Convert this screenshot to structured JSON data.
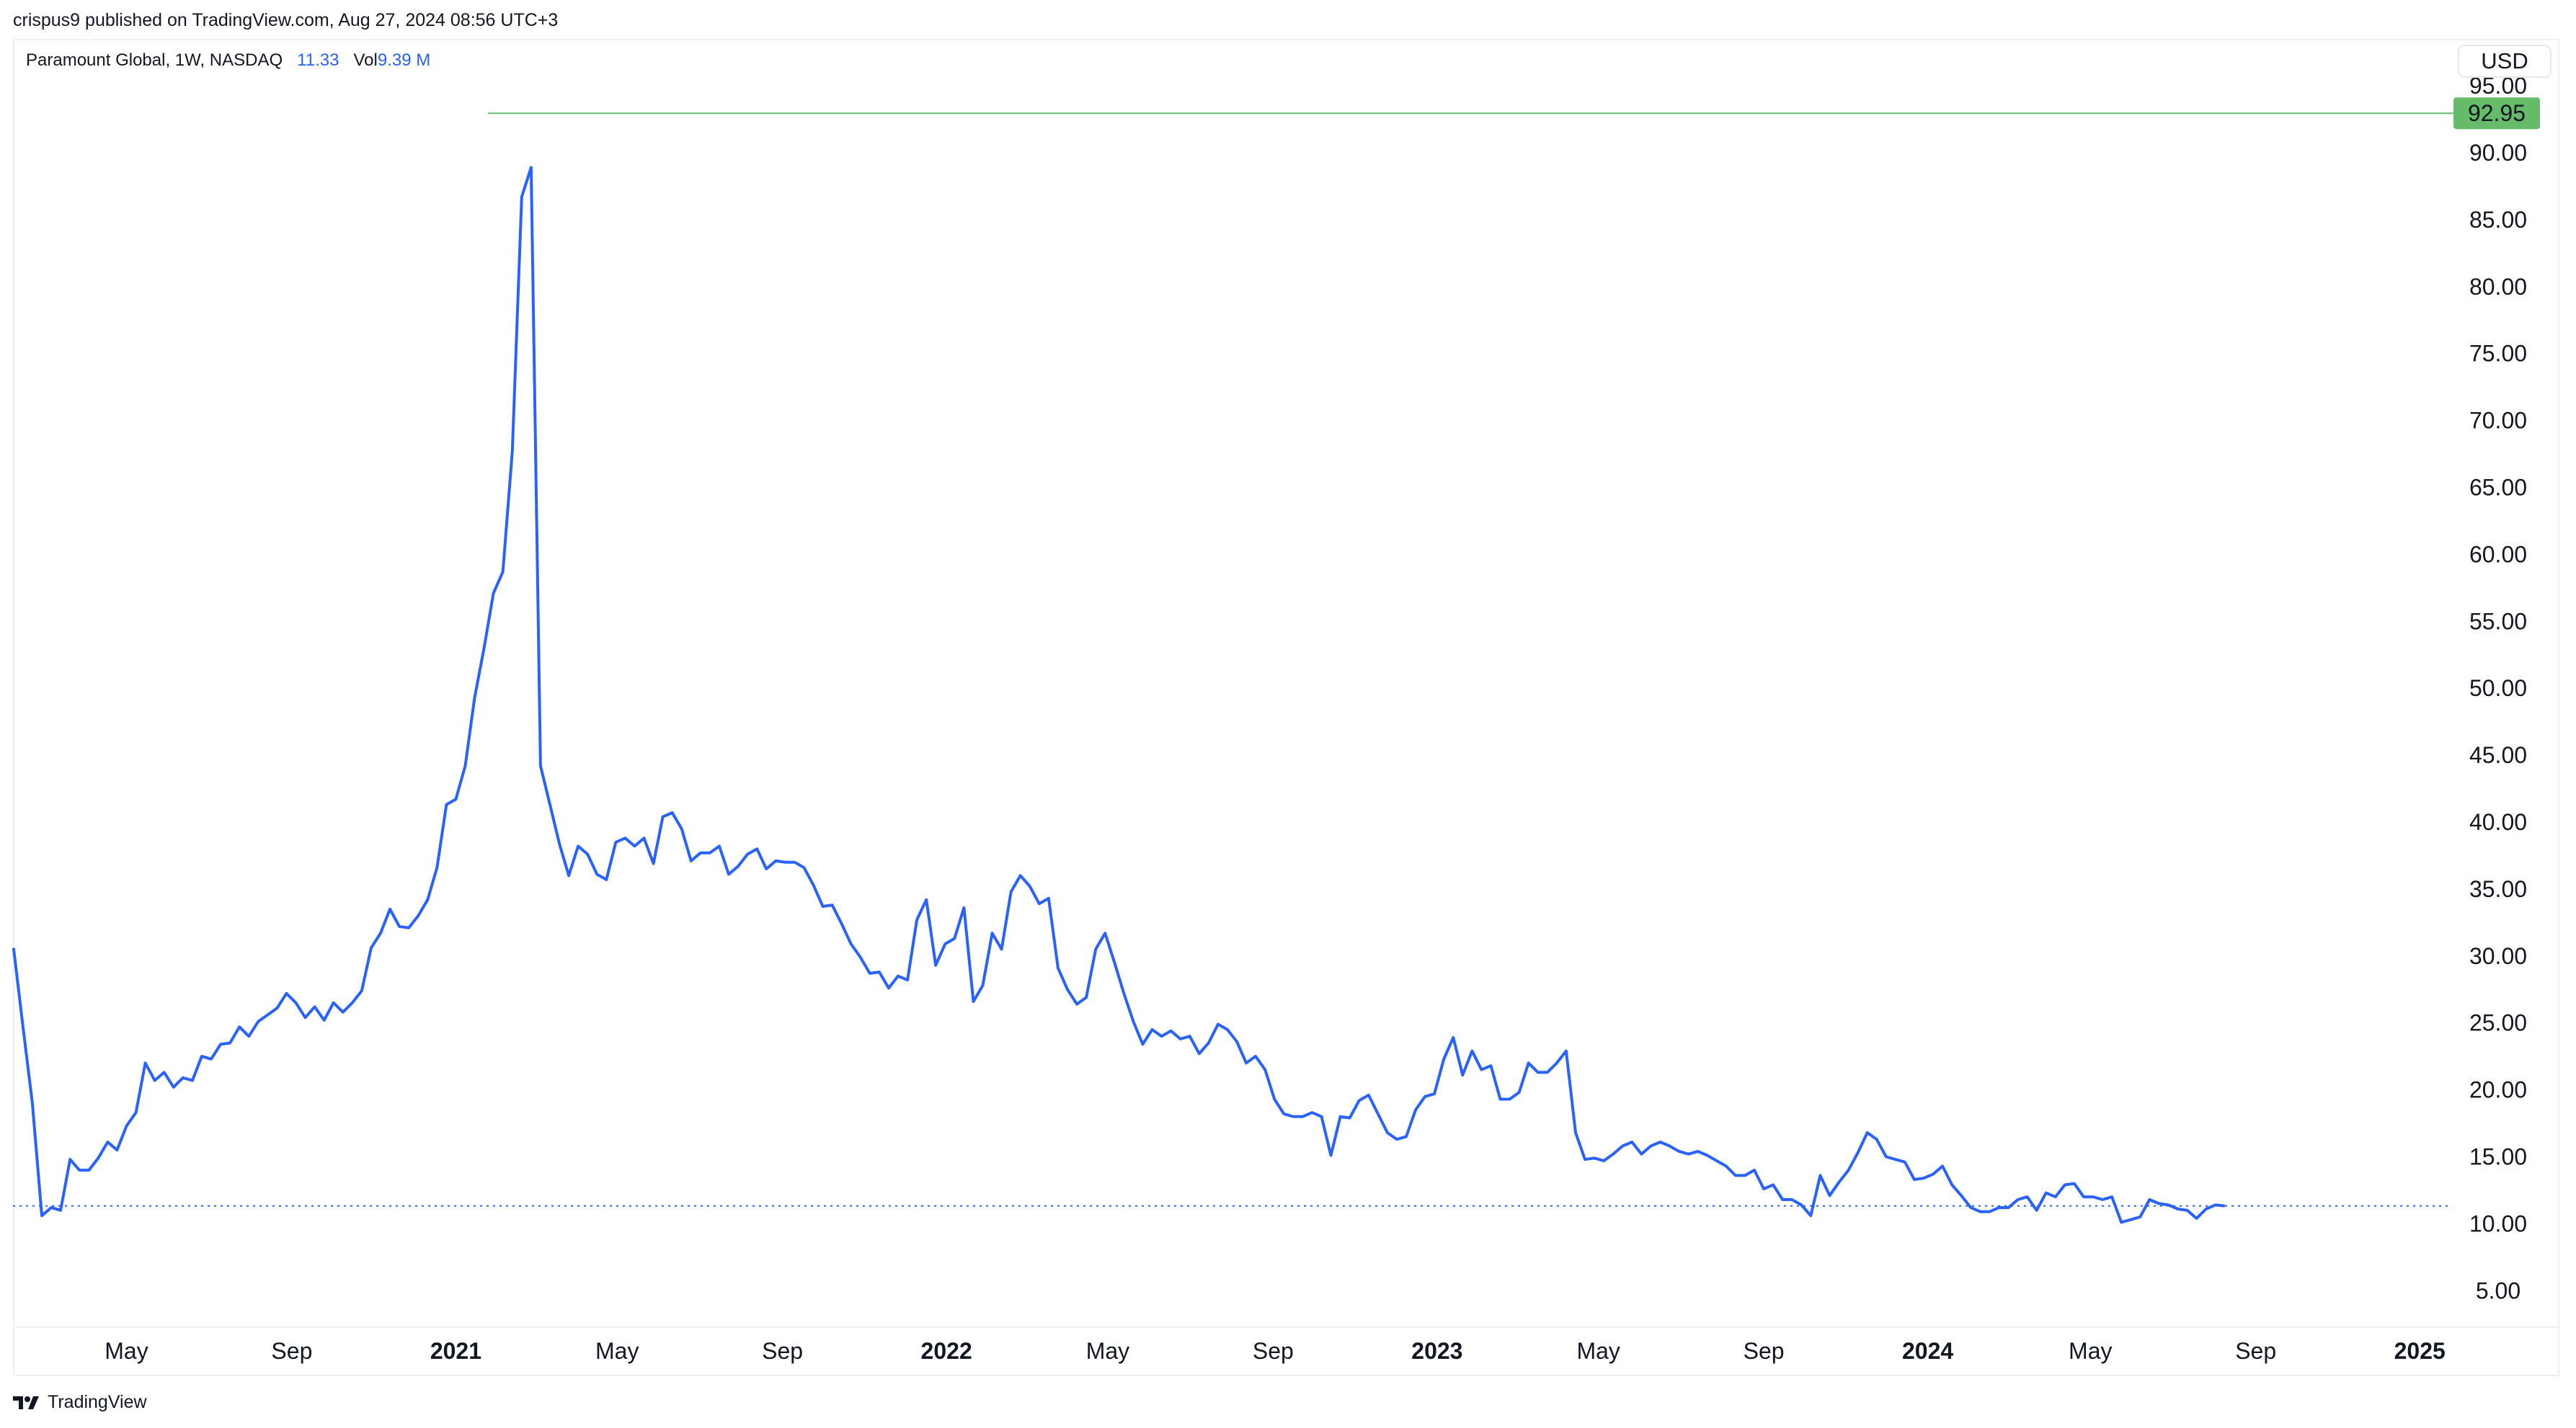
{
  "header": {
    "publisher_line": "crispus9 published on TradingView.com, Aug 27, 2024 08:56 UTC+3"
  },
  "legend": {
    "symbol": "Paramount Global, 1W, NASDAQ",
    "last_price": "11.33",
    "vol_label": "Vol",
    "vol_value": "9.39 M"
  },
  "currency_button": "USD",
  "footer": {
    "brand": "TradingView",
    "logo_icon": "tradingview-logo-icon"
  },
  "colors": {
    "line": "#2962ff",
    "high_marker": "#66bb6a",
    "text": "#131722"
  },
  "chart_data": {
    "type": "line",
    "interval": "1W",
    "x_start": "2020-02-07",
    "ylim": [
      3,
      97
    ],
    "y_ticks": [
      "5.00",
      "10.00",
      "15.00",
      "20.00",
      "25.00",
      "30.00",
      "35.00",
      "40.00",
      "45.00",
      "50.00",
      "55.00",
      "60.00",
      "65.00",
      "70.00",
      "75.00",
      "80.00",
      "85.00",
      "90.00",
      "95.00"
    ],
    "x_ticks": [
      {
        "label": "May",
        "date": "2020-05-01",
        "bold": false
      },
      {
        "label": "Sep",
        "date": "2020-09-01",
        "bold": false
      },
      {
        "label": "2021",
        "date": "2021-01-01",
        "bold": true
      },
      {
        "label": "May",
        "date": "2021-05-01",
        "bold": false
      },
      {
        "label": "Sep",
        "date": "2021-09-01",
        "bold": false
      },
      {
        "label": "2022",
        "date": "2022-01-01",
        "bold": true
      },
      {
        "label": "May",
        "date": "2022-05-01",
        "bold": false
      },
      {
        "label": "Sep",
        "date": "2022-09-01",
        "bold": false
      },
      {
        "label": "2023",
        "date": "2023-01-01",
        "bold": true
      },
      {
        "label": "May",
        "date": "2023-05-01",
        "bold": false
      },
      {
        "label": "Sep",
        "date": "2023-09-01",
        "bold": false
      },
      {
        "label": "2024",
        "date": "2024-01-01",
        "bold": true
      },
      {
        "label": "May",
        "date": "2024-05-01",
        "bold": false
      },
      {
        "label": "Sep",
        "date": "2024-09-01",
        "bold": false
      },
      {
        "label": "2025",
        "date": "2025-01-01",
        "bold": true
      }
    ],
    "last_value_line": {
      "value": 11.33,
      "style": "dotted"
    },
    "high_line": {
      "value": 92.95,
      "label": "92.95",
      "from_date": "2021-01-25"
    },
    "values": [
      30.6,
      24.7,
      19.0,
      10.6,
      11.2,
      11.0,
      14.8,
      14.0,
      14.0,
      14.9,
      16.1,
      15.5,
      17.3,
      18.3,
      22.0,
      20.7,
      21.3,
      20.2,
      20.9,
      20.7,
      22.5,
      22.3,
      23.4,
      23.5,
      24.7,
      24.0,
      25.1,
      25.6,
      26.1,
      27.2,
      26.5,
      25.4,
      26.2,
      25.2,
      26.5,
      25.8,
      26.5,
      27.4,
      30.6,
      31.7,
      33.5,
      32.2,
      32.1,
      33.0,
      34.2,
      36.6,
      41.3,
      41.7,
      44.2,
      49.3,
      53.0,
      57.1,
      58.7,
      67.7,
      86.7,
      88.9,
      44.2,
      41.3,
      38.4,
      36.0,
      38.2,
      37.6,
      36.1,
      35.7,
      38.5,
      38.8,
      38.2,
      38.8,
      36.9,
      40.4,
      40.7,
      39.5,
      37.1,
      37.7,
      37.7,
      38.2,
      36.1,
      36.7,
      37.6,
      38.0,
      36.5,
      37.1,
      37.0,
      37.0,
      36.6,
      35.3,
      33.7,
      33.8,
      32.4,
      30.9,
      29.9,
      28.7,
      28.8,
      27.6,
      28.5,
      28.2,
      32.7,
      34.2,
      29.3,
      30.9,
      31.3,
      33.6,
      26.6,
      27.8,
      31.7,
      30.5,
      34.8,
      36.0,
      35.2,
      33.9,
      34.3,
      29.1,
      27.5,
      26.4,
      26.9,
      30.5,
      31.7,
      29.5,
      27.2,
      25.1,
      23.4,
      24.5,
      24.0,
      24.4,
      23.8,
      24.0,
      22.7,
      23.5,
      24.9,
      24.5,
      23.6,
      22.0,
      22.5,
      21.5,
      19.3,
      18.2,
      18.0,
      18.0,
      18.3,
      18.0,
      15.1,
      18.0,
      17.9,
      19.2,
      19.6,
      18.2,
      16.8,
      16.3,
      16.5,
      18.5,
      19.5,
      19.7,
      22.3,
      23.9,
      21.1,
      22.9,
      21.5,
      21.8,
      19.3,
      19.3,
      19.8,
      22.0,
      21.3,
      21.3,
      22.0,
      22.9,
      16.8,
      14.8,
      14.9,
      14.7,
      15.2,
      15.8,
      16.1,
      15.2,
      15.8,
      16.1,
      15.8,
      15.4,
      15.2,
      15.4,
      15.1,
      14.7,
      14.3,
      13.6,
      13.6,
      14.0,
      12.6,
      12.9,
      11.8,
      11.8,
      11.4,
      10.6,
      13.6,
      12.1,
      13.1,
      14.0,
      15.3,
      16.8,
      16.3,
      15.0,
      14.8,
      14.6,
      13.3,
      13.4,
      13.7,
      14.3,
      12.9,
      12.1,
      11.2,
      10.9,
      10.9,
      11.2,
      11.2,
      11.8,
      12.0,
      11.0,
      12.3,
      12.0,
      12.9,
      13.0,
      12.0,
      12.0,
      11.8,
      12.0,
      10.1,
      10.3,
      10.5,
      11.8,
      11.5,
      11.4,
      11.1,
      11.0,
      10.4,
      11.1,
      11.4,
      11.33
    ]
  }
}
